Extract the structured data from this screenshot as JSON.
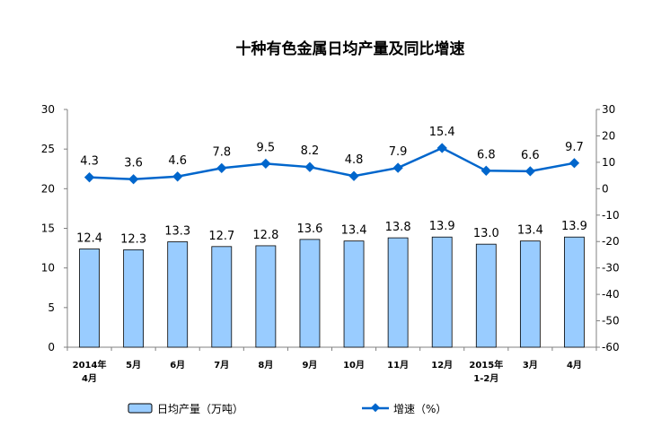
{
  "chart_data": {
    "type": "bar+line",
    "title": "十种有色金属日均产量及同比增速",
    "categories": [
      [
        "2014年",
        "4月"
      ],
      [
        "5月"
      ],
      [
        "6月"
      ],
      [
        "7月"
      ],
      [
        "8月"
      ],
      [
        "9月"
      ],
      [
        "10月"
      ],
      [
        "11月"
      ],
      [
        "12月"
      ],
      [
        "2015年",
        "1-2月"
      ],
      [
        "3月"
      ],
      [
        "4月"
      ]
    ],
    "series": [
      {
        "name": "日均产量（万吨）",
        "type": "bar",
        "axis": "left",
        "values": [
          12.4,
          12.3,
          13.3,
          12.7,
          12.8,
          13.6,
          13.4,
          13.8,
          13.9,
          13.0,
          13.4,
          13.9
        ],
        "color": "#99ccff"
      },
      {
        "name": "增速（%）",
        "type": "line",
        "axis": "right",
        "values": [
          4.3,
          3.6,
          4.6,
          7.8,
          9.5,
          8.2,
          4.8,
          7.9,
          15.4,
          6.8,
          6.6,
          9.7
        ],
        "color": "#0066cc"
      }
    ],
    "left_axis": {
      "ylim": [
        0,
        30
      ],
      "ticks": [
        0,
        5,
        10,
        15,
        20,
        25,
        30
      ]
    },
    "right_axis": {
      "ylim": [
        -60,
        30
      ],
      "ticks": [
        -60,
        -50,
        -40,
        -30,
        -20,
        -10,
        0,
        10,
        20,
        30
      ]
    },
    "grid": false,
    "legend": "bottom"
  }
}
